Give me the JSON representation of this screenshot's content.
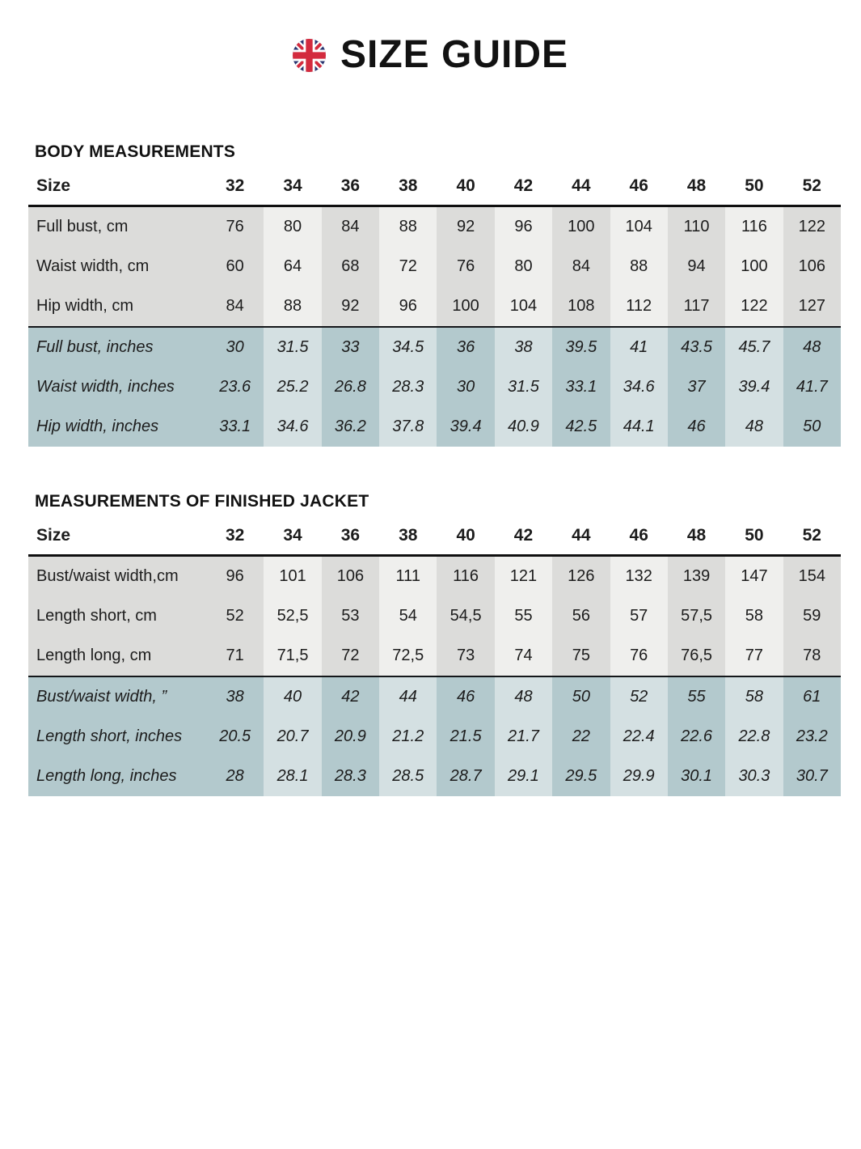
{
  "header": {
    "title": "SIZE GUIDE",
    "flag_icon": "uk-flag-icon"
  },
  "colors": {
    "text": "#1a1a1a",
    "gray_dark": "#dcdcda",
    "gray_light": "#efefed",
    "teal_dark": "#b3c9cd",
    "teal_light": "#d4e0e2",
    "flag_red": "#d32b3e",
    "flag_blue": "#28346f",
    "rule_black": "#0f0f0f"
  },
  "tables": [
    {
      "heading": "BODY MEASUREMENTS",
      "size_label": "Size",
      "sizes": [
        "32",
        "34",
        "36",
        "38",
        "40",
        "42",
        "44",
        "46",
        "48",
        "50",
        "52"
      ],
      "rows": [
        {
          "label": "Full bust, cm",
          "unit": "cm",
          "values": [
            "76",
            "80",
            "84",
            "88",
            "92",
            "96",
            "100",
            "104",
            "110",
            "116",
            "122"
          ]
        },
        {
          "label": "Waist width, cm",
          "unit": "cm",
          "values": [
            "60",
            "64",
            "68",
            "72",
            "76",
            "80",
            "84",
            "88",
            "94",
            "100",
            "106"
          ]
        },
        {
          "label": "Hip width, cm",
          "unit": "cm",
          "values": [
            "84",
            "88",
            "92",
            "96",
            "100",
            "104",
            "108",
            "112",
            "117",
            "122",
            "127"
          ]
        },
        {
          "label": "Full bust, inches",
          "unit": "inches",
          "values": [
            "30",
            "31.5",
            "33",
            "34.5",
            "36",
            "38",
            "39.5",
            "41",
            "43.5",
            "45.7",
            "48"
          ]
        },
        {
          "label": "Waist width, inches",
          "unit": "inches",
          "values": [
            "23.6",
            "25.2",
            "26.8",
            "28.3",
            "30",
            "31.5",
            "33.1",
            "34.6",
            "37",
            "39.4",
            "41.7"
          ]
        },
        {
          "label": "Hip width, inches",
          "unit": "inches",
          "values": [
            "33.1",
            "34.6",
            "36.2",
            "37.8",
            "39.4",
            "40.9",
            "42.5",
            "44.1",
            "46",
            "48",
            "50"
          ]
        }
      ]
    },
    {
      "heading": "MEASUREMENTS OF FINISHED JACKET",
      "size_label": "Size",
      "sizes": [
        "32",
        "34",
        "36",
        "38",
        "40",
        "42",
        "44",
        "46",
        "48",
        "50",
        "52"
      ],
      "rows": [
        {
          "label": "Bust/waist width,cm",
          "unit": "cm",
          "values": [
            "96",
            "101",
            "106",
            "111",
            "116",
            "121",
            "126",
            "132",
            "139",
            "147",
            "154"
          ]
        },
        {
          "label": "Length short, cm",
          "unit": "cm",
          "values": [
            "52",
            "52,5",
            "53",
            "54",
            "54,5",
            "55",
            "56",
            "57",
            "57,5",
            "58",
            "59"
          ]
        },
        {
          "label": "Length long, cm",
          "unit": "cm",
          "values": [
            "71",
            "71,5",
            "72",
            "72,5",
            "73",
            "74",
            "75",
            "76",
            "76,5",
            "77",
            "78"
          ]
        },
        {
          "label": "Bust/waist width, ”",
          "unit": "inches",
          "values": [
            "38",
            "40",
            "42",
            "44",
            "46",
            "48",
            "50",
            "52",
            "55",
            "58",
            "61"
          ]
        },
        {
          "label": "Length short, inches",
          "unit": "inches",
          "values": [
            "20.5",
            "20.7",
            "20.9",
            "21.2",
            "21.5",
            "21.7",
            "22",
            "22.4",
            "22.6",
            "22.8",
            "23.2"
          ]
        },
        {
          "label": "Length long, inches",
          "unit": "inches",
          "values": [
            "28",
            "28.1",
            "28.3",
            "28.5",
            "28.7",
            "29.1",
            "29.5",
            "29.9",
            "30.1",
            "30.3",
            "30.7"
          ]
        }
      ]
    }
  ]
}
